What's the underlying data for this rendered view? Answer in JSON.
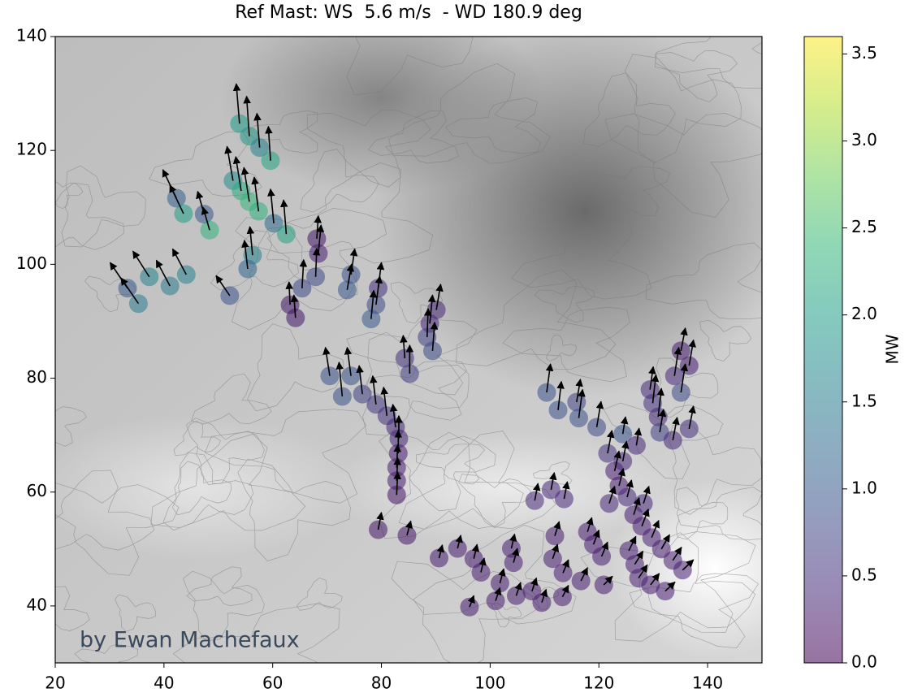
{
  "chart_data": {
    "type": "scatter",
    "title": "Ref Mast: WS  5.6 m/s  - WD 180.9 deg",
    "annotation": "by Ewan Machefaux",
    "xlim": [
      20,
      150
    ],
    "ylim": [
      30,
      140
    ],
    "xticks": [
      20,
      40,
      60,
      80,
      100,
      120,
      140
    ],
    "yticks": [
      40,
      60,
      80,
      100,
      120,
      140
    ],
    "colormap": "viridis",
    "alpha": 0.55,
    "colorbar_label": "MW",
    "clim": [
      0,
      3.6
    ],
    "cticks": [
      {
        "value": 0,
        "label": "0.0"
      },
      0.5,
      {
        "value": 1,
        "label": "1.0"
      },
      1.5,
      {
        "value": 2,
        "label": "2.0"
      },
      2.5,
      {
        "value": 3,
        "label": "3.0"
      },
      3.5
    ],
    "series": [
      {
        "x": [
          53.9,
          55.7,
          57.6,
          59.6,
          52.7,
          54.2,
          55.7,
          57.4,
          60.2,
          62.5,
          42.3,
          43.6,
          47.4,
          48.4,
          56.3,
          55.4,
          52.1,
          33.3,
          35.3,
          37.3,
          41.1,
          44.1,
          68.1,
          68.4,
          67.9,
          65.4,
          63.2,
          64.2,
          74.4,
          73.7,
          79.4,
          79.0,
          78.1,
          90.1,
          88.9,
          88.4,
          89.4,
          84.3,
          85.2,
          70.5,
          74.4,
          72.8,
          76.5,
          79.0,
          81.0,
          82.6,
          83.2,
          83.1,
          82.8,
          82.8,
          82.8,
          79.4,
          84.7,
          110.4,
          112.5,
          115.9,
          116.3,
          119.6,
          124.4,
          121.6,
          126.9,
          129.4,
          129.9,
          130.9,
          131.2,
          133.6,
          135.1,
          133.9,
          136.6,
          135.1,
          136.6,
          122.9,
          124.4,
          123.7,
          121.9,
          125.2,
          126.4,
          128.2,
          127.9,
          129.7,
          131.5,
          133.6,
          135.4,
          125.5,
          126.6,
          127.3,
          129.5,
          132.2,
          108.2,
          111.2,
          113.6,
          117.9,
          119.0,
          120.5,
          120.9,
          116.7,
          113.4,
          111.9,
          111.5,
          113.3,
          109.5,
          107.7,
          103.9,
          104.3,
          101.8,
          101.0,
          96.2,
          98.3,
          97.0,
          94.0,
          90.6,
          104.8
        ],
        "y": [
          124.7,
          122.5,
          120.5,
          118.2,
          114.7,
          112.9,
          111.0,
          109.3,
          107.2,
          105.3,
          111.6,
          108.9,
          108.8,
          106.0,
          101.6,
          99.2,
          94.5,
          95.8,
          93.1,
          97.8,
          96.2,
          98.2,
          104.5,
          101.9,
          97.8,
          95.8,
          92.9,
          90.6,
          98.2,
          95.5,
          95.8,
          92.9,
          90.4,
          92.0,
          89.6,
          87.2,
          84.8,
          83.5,
          80.8,
          80.4,
          80.4,
          76.8,
          77.2,
          75.4,
          73.4,
          71.4,
          69.4,
          66.8,
          64.3,
          62.0,
          59.5,
          53.4,
          52.4,
          77.5,
          74.4,
          75.8,
          73.0,
          71.4,
          70.2,
          66.8,
          68.2,
          78.0,
          75.6,
          73.2,
          70.5,
          69.1,
          84.8,
          80.4,
          82.2,
          77.5,
          71.1,
          63.7,
          65.4,
          61.1,
          58.0,
          59.1,
          56.0,
          58.0,
          54.0,
          52.0,
          50.0,
          48.0,
          46.3,
          49.7,
          47.3,
          44.9,
          43.7,
          42.6,
          58.5,
          60.4,
          58.8,
          53.0,
          50.8,
          48.7,
          43.7,
          44.4,
          45.8,
          52.3,
          48.3,
          41.6,
          40.6,
          42.6,
          50.1,
          47.6,
          44.0,
          40.9,
          39.8,
          45.9,
          48.3,
          50.1,
          48.4,
          41.8
        ],
        "values": [
          2.0,
          1.9,
          1.6,
          2.1,
          1.8,
          2.2,
          2.4,
          2.3,
          1.3,
          2.1,
          1.1,
          2.0,
          1.0,
          2.3,
          1.6,
          1.2,
          0.9,
          1.0,
          1.5,
          1.6,
          1.5,
          1.6,
          0.2,
          0.3,
          0.8,
          0.8,
          0.2,
          0.2,
          0.9,
          1.0,
          0.5,
          0.8,
          1.0,
          0.4,
          0.4,
          0.7,
          0.8,
          0.5,
          0.7,
          0.9,
          0.9,
          0.9,
          0.7,
          0.6,
          0.5,
          0.4,
          0.4,
          0.3,
          0.3,
          0.3,
          0.2,
          0.2,
          0.2,
          0.9,
          0.9,
          0.7,
          0.9,
          0.8,
          0.9,
          0.5,
          0.4,
          0.4,
          0.5,
          0.4,
          0.7,
          0.4,
          0.3,
          0.4,
          0.3,
          0.8,
          0.5,
          0.3,
          0.4,
          0.3,
          0.4,
          0.4,
          0.3,
          0.4,
          0.3,
          0.3,
          0.3,
          0.3,
          0.3,
          0.3,
          0.3,
          0.3,
          0.3,
          0.3,
          0.4,
          0.4,
          0.4,
          0.3,
          0.3,
          0.3,
          0.3,
          0.3,
          0.3,
          0.3,
          0.3,
          0.3,
          0.3,
          0.3,
          0.3,
          0.3,
          0.3,
          0.3,
          0.3,
          0.3,
          0.3,
          0.3,
          0.3,
          0.3
        ],
        "u": [
          -0.6,
          -0.5,
          -0.5,
          -0.4,
          -1.1,
          -1,
          -1,
          -0.8,
          -0.6,
          -0.5,
          -2.5,
          -2.5,
          -1.2,
          -1.2,
          -0.5,
          -0.6,
          -2.5,
          -3.2,
          -3.2,
          -3,
          -2.5,
          -2.5,
          0.3,
          0.5,
          0.2,
          0.3,
          -0.2,
          -0.3,
          0.7,
          0.8,
          0.6,
          0.7,
          0.5,
          0.8,
          0.5,
          0.2,
          0.4,
          -0.3,
          0,
          -0.8,
          -0.7,
          -0.6,
          -0.6,
          -0.6,
          -0.6,
          -0.5,
          0,
          0,
          0.2,
          0.2,
          0.2,
          0.6,
          0.7,
          0.7,
          0.6,
          0.7,
          0.7,
          0.8,
          0.5,
          0.8,
          0.5,
          0.6,
          0.6,
          0.6,
          0.7,
          0.8,
          0.8,
          0.8,
          0.8,
          0.8,
          0.8,
          0.8,
          0.7,
          0.8,
          1,
          0.8,
          1,
          1,
          1.2,
          1.3,
          1.5,
          1.6,
          2,
          1.3,
          1.5,
          1.6,
          1.6,
          1.8,
          0.6,
          0.6,
          0.6,
          0.8,
          1,
          1.1,
          1.6,
          1.2,
          1,
          0.8,
          0.9,
          1.1,
          0.8,
          0.8,
          0.6,
          0.7,
          0.7,
          0.8,
          0.8,
          0.6,
          0.6,
          0.6,
          0.6,
          0.8
        ],
        "v": [
          7,
          7,
          6,
          6,
          6,
          6,
          6,
          6,
          6,
          6,
          5,
          5,
          4,
          4,
          5,
          5,
          3.5,
          4.5,
          4.5,
          4.5,
          4.5,
          4.5,
          4,
          5,
          5,
          5,
          4,
          4,
          4.5,
          4.5,
          4.5,
          5,
          5,
          4.5,
          5,
          5,
          5,
          4,
          5,
          5,
          5,
          6,
          5,
          5,
          5,
          4,
          4,
          4,
          4,
          4,
          4,
          3,
          2.5,
          5,
          5,
          4,
          5,
          4.5,
          3,
          4,
          3,
          4,
          5,
          5,
          4,
          4,
          4,
          5,
          4.5,
          5,
          4,
          3.5,
          3.5,
          3,
          3,
          3,
          3,
          3,
          3,
          3,
          2.5,
          2.3,
          1.8,
          2.5,
          2.3,
          2.3,
          2,
          1.6,
          3,
          3,
          3,
          2.5,
          2.5,
          2.5,
          1.5,
          2.3,
          2.3,
          2.5,
          2.5,
          2,
          2.3,
          2.3,
          2.5,
          2.5,
          2.5,
          2.3,
          2,
          2.5,
          2.5,
          2.3,
          2.3,
          2.3
        ]
      }
    ]
  }
}
